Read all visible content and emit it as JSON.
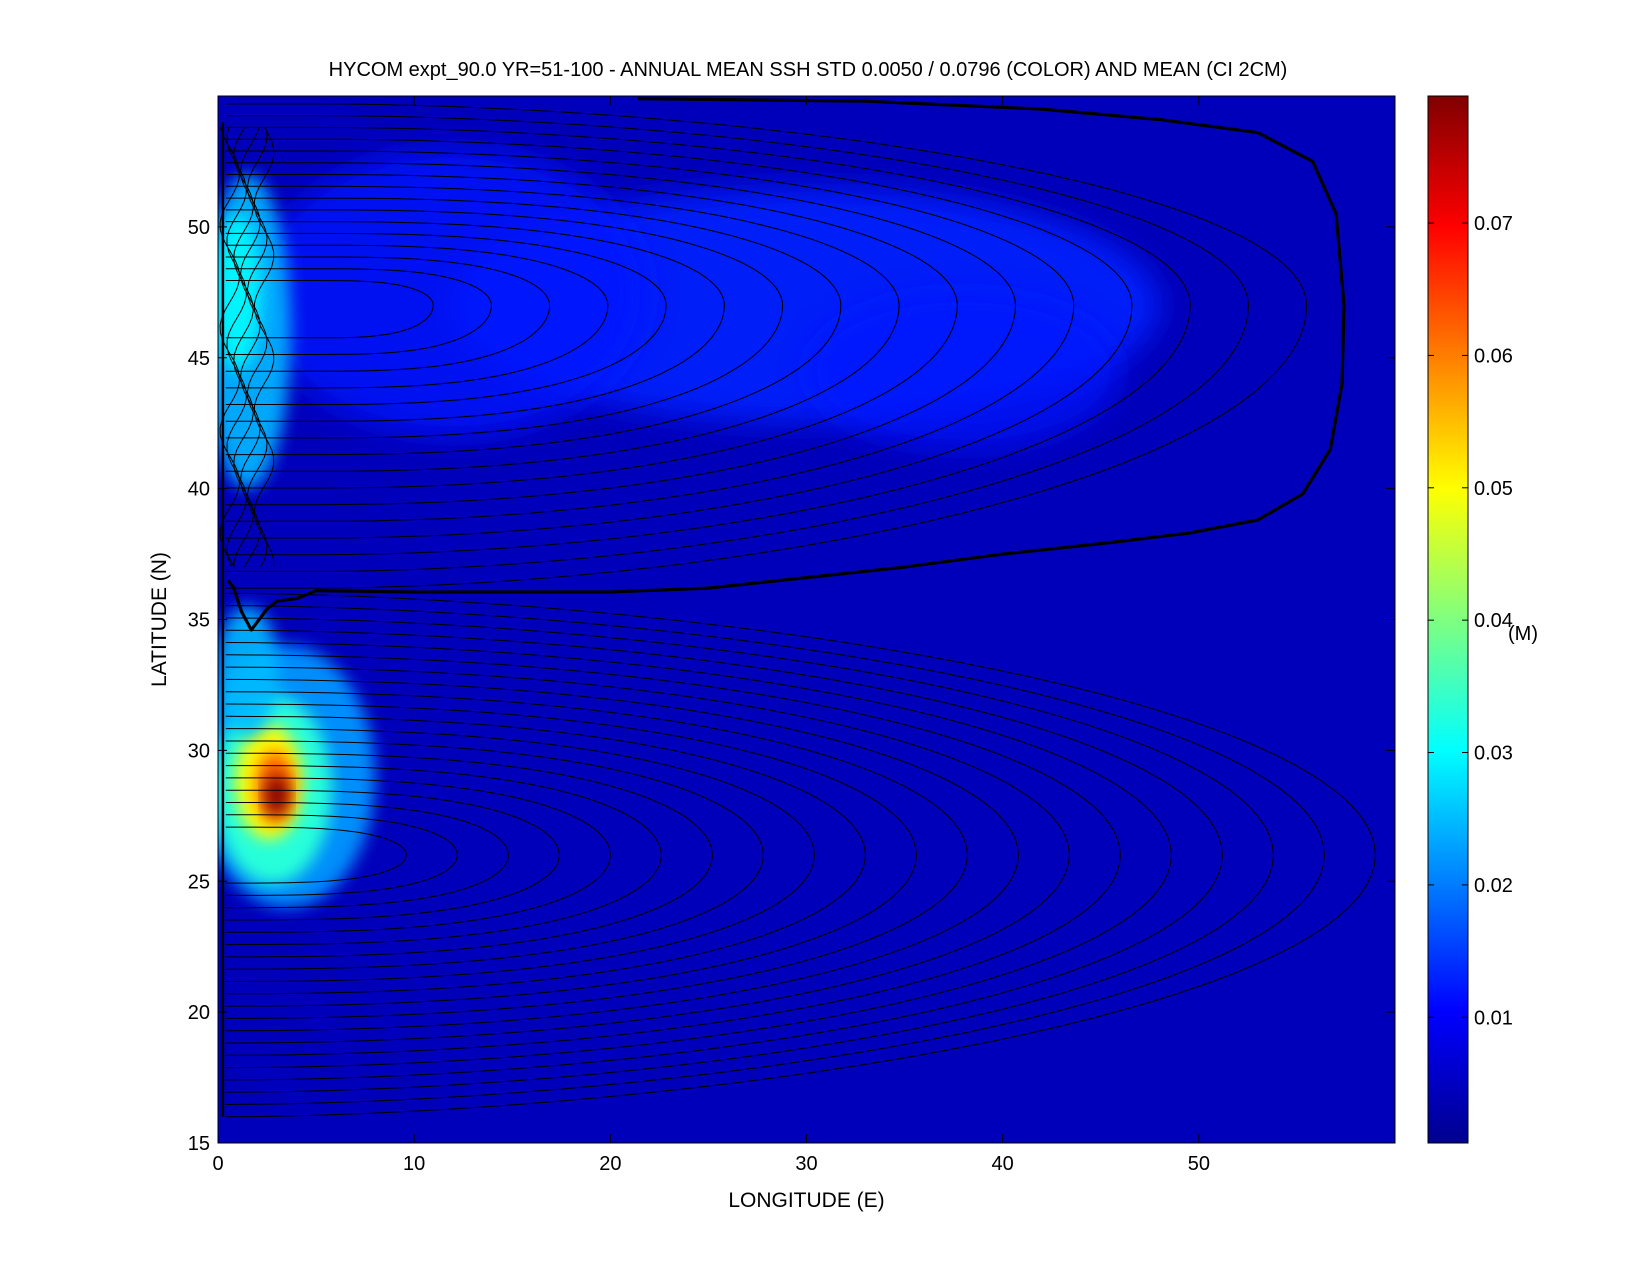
{
  "chart_data": {
    "type": "heatmap",
    "title": "HYCOM expt_90.0 YR=51-100 - ANNUAL MEAN SSH STD 0.0050 / 0.0796 (COLOR) AND MEAN (CI 2CM)",
    "xlabel": "LONGITUDE (E)",
    "ylabel": "LATITUDE (N)",
    "xlim": [
      0,
      60
    ],
    "ylim": [
      15,
      55
    ],
    "x_ticks": [
      0,
      10,
      20,
      30,
      40,
      50
    ],
    "y_ticks": [
      15,
      20,
      25,
      30,
      35,
      40,
      45,
      50
    ],
    "grid": false,
    "colorbar": {
      "position": "right",
      "range": [
        0.0005,
        0.0796
      ],
      "ticks": [
        0.01,
        0.02,
        0.03,
        0.04,
        0.05,
        0.06,
        0.07
      ],
      "unit_label": "(M)",
      "colormap": "jet"
    },
    "color_field": {
      "background_value": 0.005,
      "features": [
        {
          "name": "peak",
          "lon": 3.0,
          "lat": 28.3,
          "value": 0.0796
        },
        {
          "name": "subtropical-western-boundary",
          "lon": 1.5,
          "lat": 29,
          "value": 0.04
        },
        {
          "name": "subpolar-western-boundary",
          "lon": 1.0,
          "lat": 47,
          "value": 0.028
        },
        {
          "name": "subpolar-interior-band",
          "lon": 30,
          "lat": 47,
          "value": 0.014
        }
      ]
    },
    "contours": {
      "interval_cm": 2,
      "zero_line": "thick",
      "subtropical_gyre": {
        "lat_range": [
          16,
          36
        ],
        "east_edge_lon": 59
      },
      "subpolar_gyre": {
        "lat_range": [
          36,
          54.5
        ],
        "east_edge_lon": 57.5
      }
    }
  }
}
